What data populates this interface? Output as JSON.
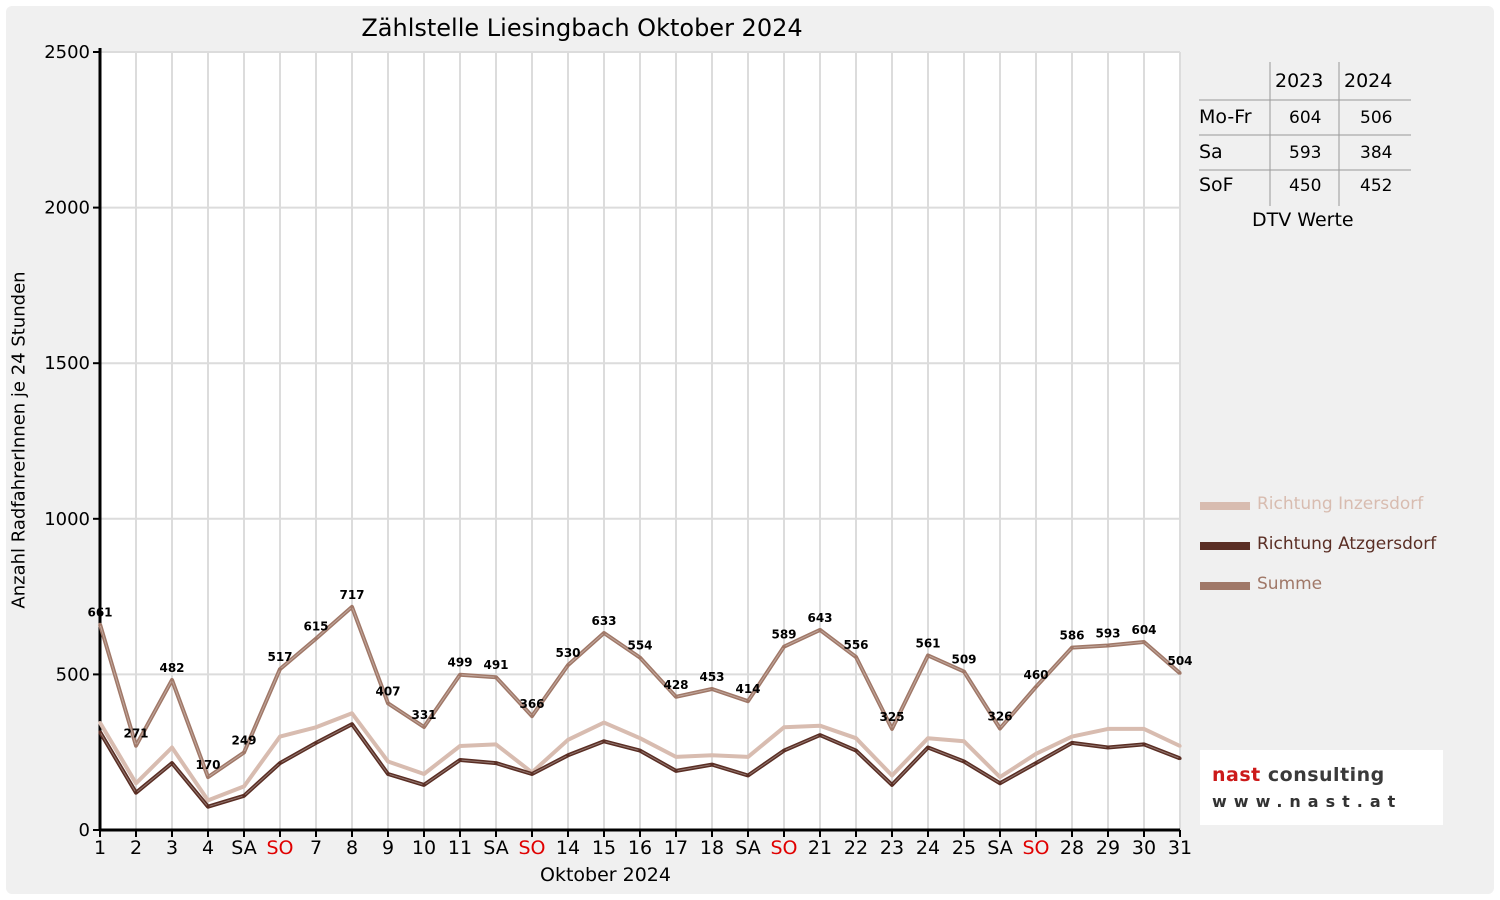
{
  "chart_data": {
    "type": "line",
    "title": "Zählstelle Liesingbach Oktober 2024",
    "xlabel": "Oktober 2024",
    "ylabel": "Anzahl RadfahrerInnen je 24 Stunden",
    "ylim": [
      0,
      2500
    ],
    "yticks": [
      "0",
      "500",
      "1000",
      "1500",
      "2000",
      "2500"
    ],
    "categories": [
      "1",
      "2",
      "3",
      "4",
      "SA",
      "SO",
      "7",
      "8",
      "9",
      "10",
      "11",
      "SA",
      "SO",
      "14",
      "15",
      "16",
      "17",
      "18",
      "SA",
      "SO",
      "21",
      "22",
      "23",
      "24",
      "25",
      "SA",
      "SO",
      "28",
      "29",
      "30",
      "31"
    ],
    "highlight_categories": [
      "SO"
    ],
    "highlight_color": "#e00000",
    "grid": true,
    "legend_position": "right",
    "series": [
      {
        "name": "Richtung Inzersdorf",
        "color": "#d8bcb0",
        "values": [
          345,
          150,
          265,
          95,
          140,
          300,
          330,
          375,
          220,
          180,
          270,
          275,
          185,
          290,
          345,
          295,
          235,
          240,
          235,
          330,
          335,
          295,
          175,
          295,
          285,
          170,
          245,
          300,
          325,
          325,
          270
        ]
      },
      {
        "name": "Richtung Atzgersdorf",
        "color": "#5a2e24",
        "values": [
          315,
          120,
          215,
          75,
          110,
          215,
          280,
          340,
          180,
          145,
          225,
          215,
          180,
          240,
          285,
          255,
          190,
          210,
          175,
          255,
          305,
          255,
          145,
          265,
          220,
          150,
          215,
          280,
          265,
          275,
          230
        ]
      },
      {
        "name": "Summe",
        "color": "#a07868",
        "values": [
          661,
          271,
          482,
          170,
          249,
          517,
          615,
          717,
          407,
          331,
          499,
          491,
          366,
          530,
          633,
          554,
          428,
          453,
          414,
          589,
          643,
          556,
          325,
          561,
          509,
          326,
          460,
          586,
          593,
          604,
          504
        ]
      }
    ],
    "data_labels": [
      "661",
      "271",
      "482",
      "170",
      "249",
      "517",
      "615",
      "717",
      "407",
      "331",
      "499",
      "491",
      "366",
      "530",
      "633",
      "554",
      "428",
      "453",
      "414",
      "589",
      "643",
      "556",
      "325",
      "561",
      "509",
      "326",
      "460",
      "586",
      "593",
      "604",
      "504"
    ]
  },
  "dtv_table": {
    "columns": [
      "2023",
      "2024"
    ],
    "rows": [
      {
        "label": "Mo-Fr",
        "v2023": "604",
        "v2024": "506"
      },
      {
        "label": "Sa",
        "v2023": "593",
        "v2024": "384"
      },
      {
        "label": "SoF",
        "v2023": "450",
        "v2024": "452"
      }
    ],
    "caption": "DTV Werte"
  },
  "logo": {
    "line1a": "nast",
    "line1b": "consulting",
    "line2": "www.nast.at",
    "red": "#cc1a1a",
    "dark": "#3a3a3a"
  }
}
